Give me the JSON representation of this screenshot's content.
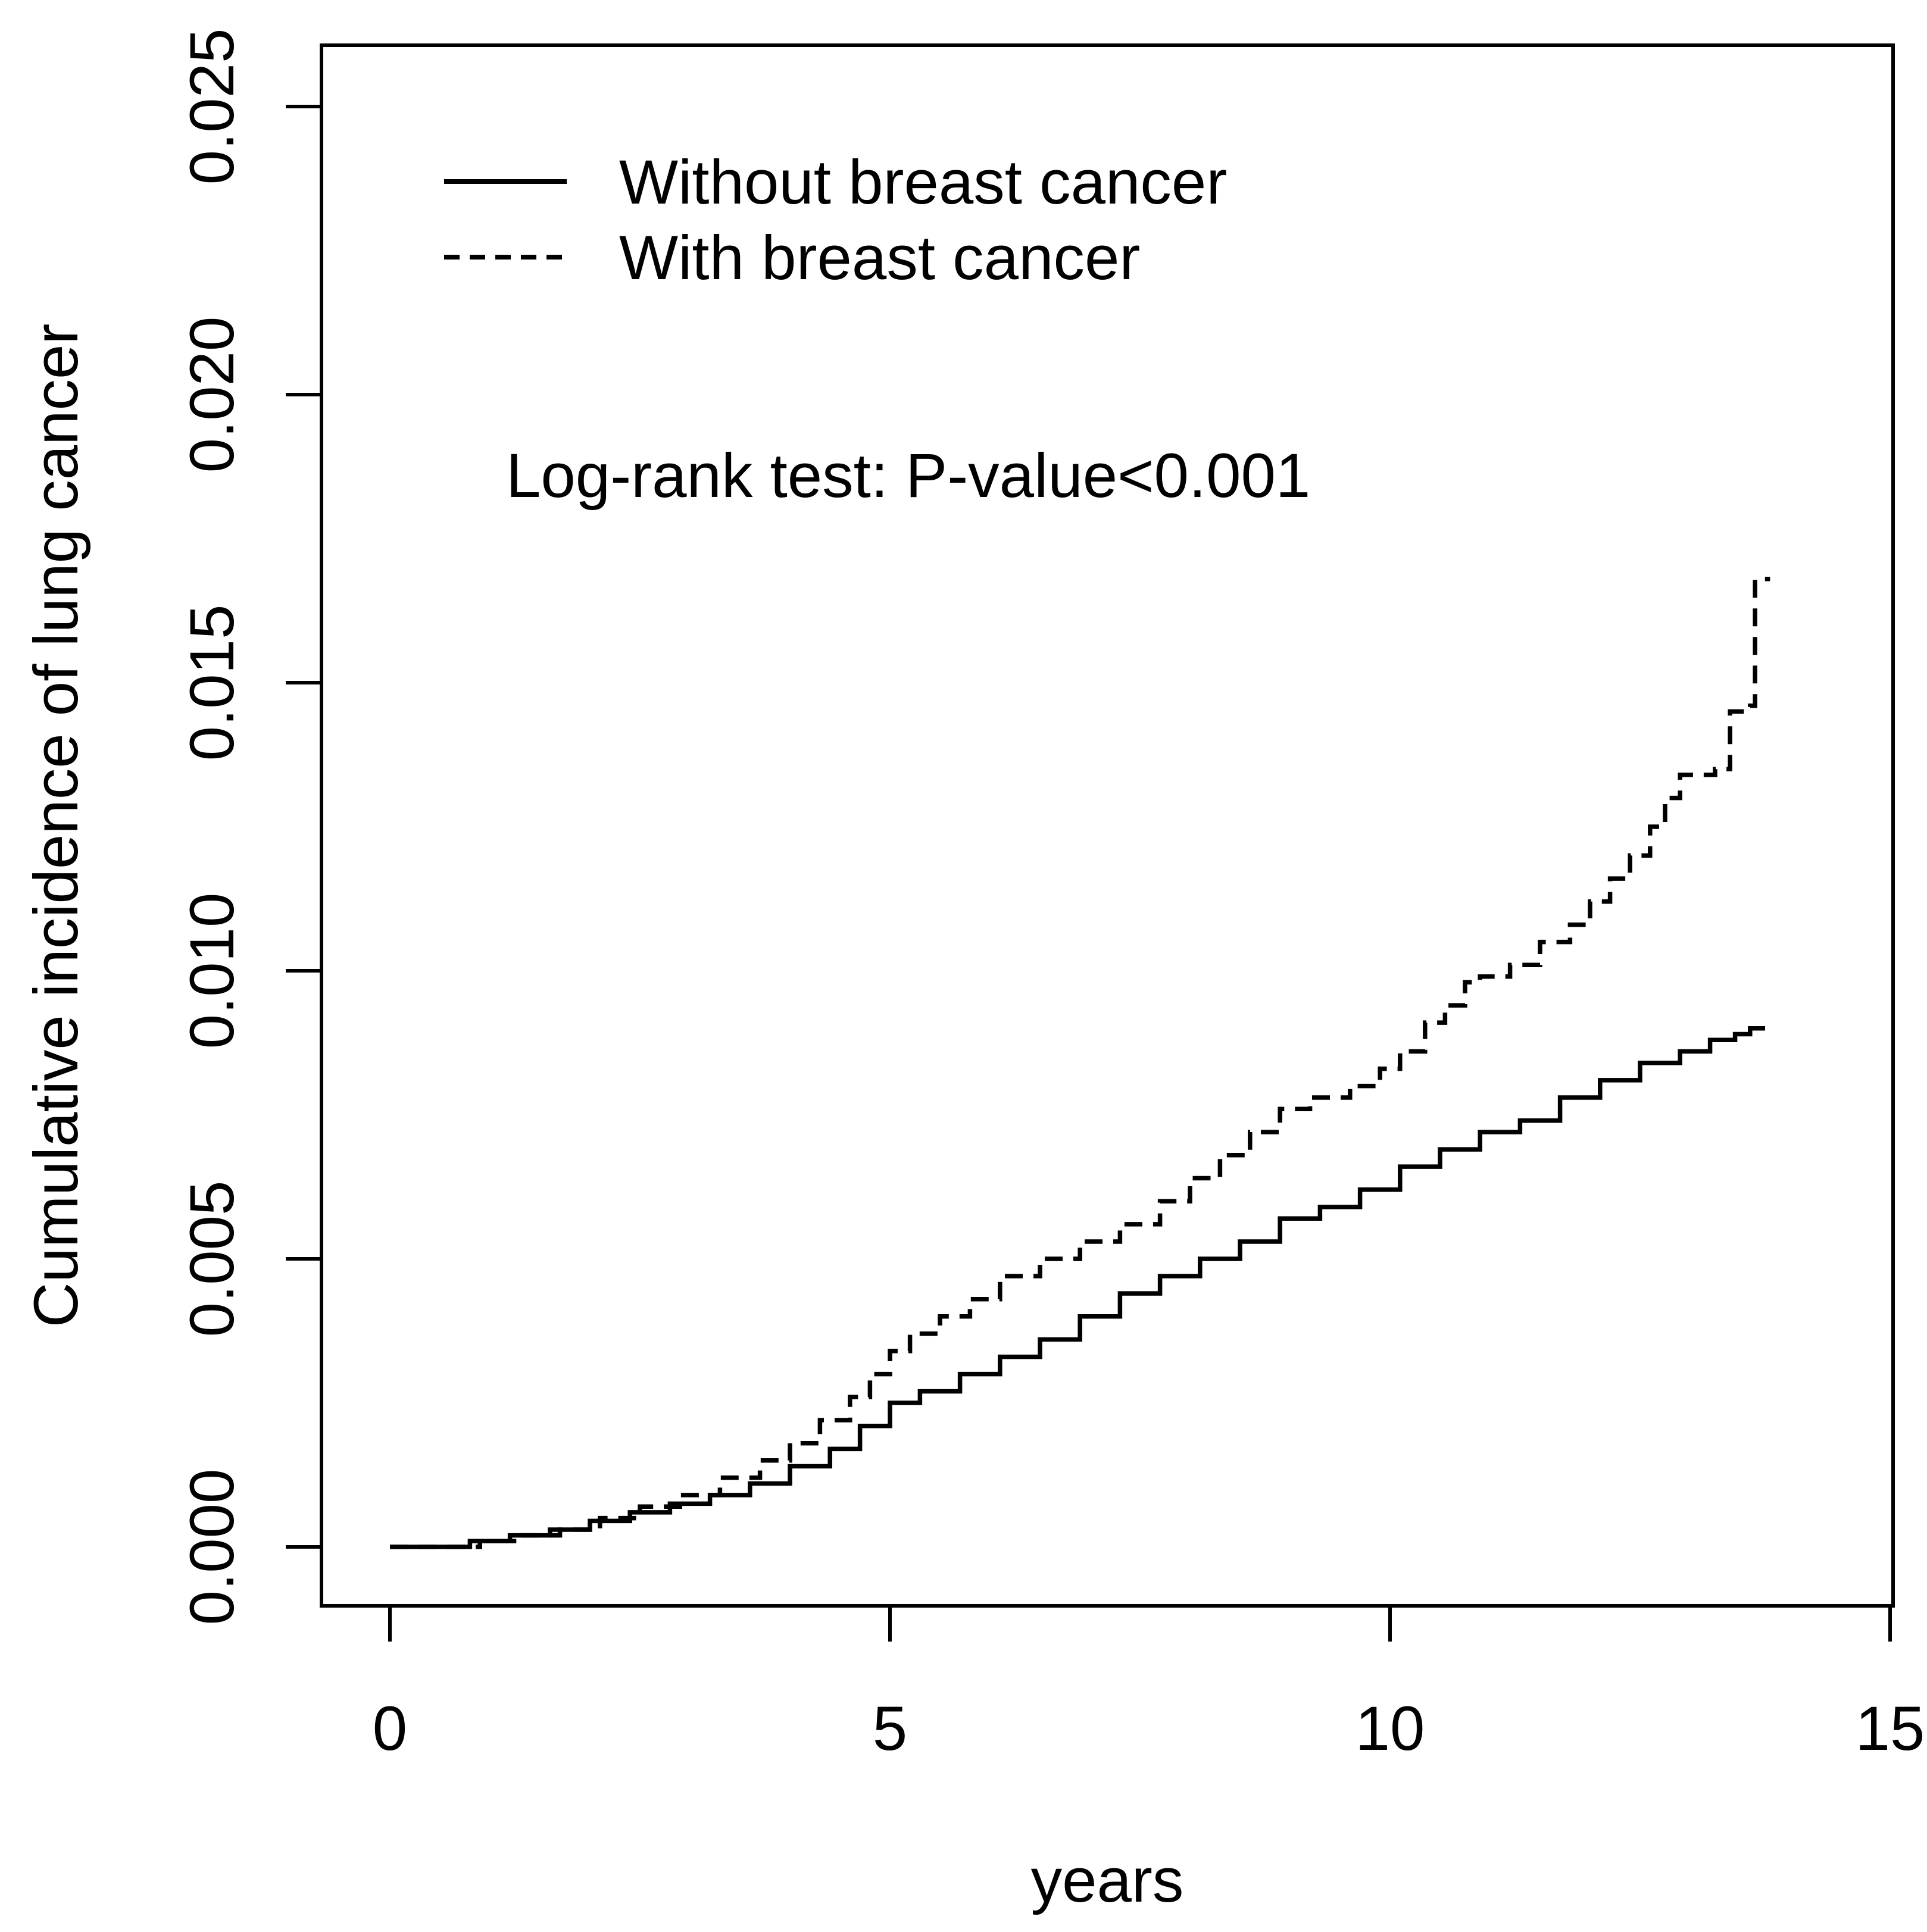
{
  "figure": {
    "background_color": "#ffffff",
    "foreground_color": "#000000"
  },
  "chart_data": {
    "type": "line",
    "subtype": "cumulative-incidence-step-curves",
    "title": "",
    "xlabel": "years",
    "ylabel": "Cumulative incidence of lung cancer",
    "xlim": [
      0,
      15
    ],
    "ylim": [
      0,
      0.025
    ],
    "grid": false,
    "legend_position": "top-left-inside",
    "interpolation": "step-after",
    "annotation": "Log-rank test: P-value<0.001",
    "x_ticks": {
      "values": [
        0,
        5,
        10,
        15
      ],
      "labels": [
        "0",
        "5",
        "10",
        "15"
      ]
    },
    "y_ticks": {
      "values": [
        0,
        0.005,
        0.01,
        0.015,
        0.02,
        0.025
      ],
      "labels": [
        "0.000",
        "0.005",
        "0.010",
        "0.015",
        "0.020",
        "0.025"
      ]
    },
    "legend": [
      {
        "label": "Without breast cancer",
        "line_style": "solid"
      },
      {
        "label": "With breast cancer",
        "line_style": "dashed"
      }
    ],
    "series": [
      {
        "name": "Without breast cancer",
        "line_style": "solid",
        "color": "#000000",
        "points": [
          [
            0,
            0
          ],
          [
            0.55,
            0
          ],
          [
            0.8,
            0.0001
          ],
          [
            1.2,
            0.0002
          ],
          [
            1.6,
            0.0003
          ],
          [
            2.0,
            0.00045
          ],
          [
            2.4,
            0.0006
          ],
          [
            2.8,
            0.00075
          ],
          [
            3.2,
            0.0009
          ],
          [
            3.6,
            0.0011
          ],
          [
            4.0,
            0.0014
          ],
          [
            4.4,
            0.0017
          ],
          [
            4.7,
            0.0021
          ],
          [
            5.0,
            0.0025
          ],
          [
            5.3,
            0.0027
          ],
          [
            5.7,
            0.003
          ],
          [
            6.1,
            0.0033
          ],
          [
            6.5,
            0.0036
          ],
          [
            6.9,
            0.004
          ],
          [
            7.3,
            0.0044
          ],
          [
            7.7,
            0.0047
          ],
          [
            8.1,
            0.005
          ],
          [
            8.5,
            0.0053
          ],
          [
            8.9,
            0.0057
          ],
          [
            9.3,
            0.0059
          ],
          [
            9.7,
            0.0062
          ],
          [
            10.1,
            0.0066
          ],
          [
            10.5,
            0.0069
          ],
          [
            10.9,
            0.0072
          ],
          [
            11.3,
            0.0074
          ],
          [
            11.7,
            0.0078
          ],
          [
            12.1,
            0.0081
          ],
          [
            12.5,
            0.0084
          ],
          [
            12.9,
            0.0086
          ],
          [
            13.2,
            0.0088
          ],
          [
            13.45,
            0.0089
          ],
          [
            13.6,
            0.009
          ],
          [
            13.75,
            0.009
          ]
        ]
      },
      {
        "name": "With breast cancer",
        "line_style": "dashed",
        "color": "#000000",
        "points": [
          [
            0,
            0
          ],
          [
            0.55,
            0
          ],
          [
            0.9,
            0.0001
          ],
          [
            1.3,
            0.0002
          ],
          [
            1.7,
            0.0003
          ],
          [
            2.1,
            0.0005
          ],
          [
            2.5,
            0.0007
          ],
          [
            2.9,
            0.0009
          ],
          [
            3.3,
            0.0012
          ],
          [
            3.7,
            0.0015
          ],
          [
            4.0,
            0.0018
          ],
          [
            4.3,
            0.0022
          ],
          [
            4.6,
            0.0026
          ],
          [
            4.8,
            0.003
          ],
          [
            5.0,
            0.0034
          ],
          [
            5.2,
            0.0037
          ],
          [
            5.5,
            0.004
          ],
          [
            5.8,
            0.0043
          ],
          [
            6.1,
            0.0047
          ],
          [
            6.5,
            0.005
          ],
          [
            6.9,
            0.0053
          ],
          [
            7.3,
            0.0056
          ],
          [
            7.7,
            0.006
          ],
          [
            8.0,
            0.0064
          ],
          [
            8.3,
            0.0068
          ],
          [
            8.6,
            0.0072
          ],
          [
            8.9,
            0.0076
          ],
          [
            9.2,
            0.0078
          ],
          [
            9.6,
            0.008
          ],
          [
            9.9,
            0.0083
          ],
          [
            10.1,
            0.0086
          ],
          [
            10.35,
            0.0091
          ],
          [
            10.55,
            0.0094
          ],
          [
            10.75,
            0.0098
          ],
          [
            10.9,
            0.0099
          ],
          [
            11.2,
            0.0101
          ],
          [
            11.5,
            0.0105
          ],
          [
            11.8,
            0.0108
          ],
          [
            12.0,
            0.0112
          ],
          [
            12.2,
            0.0116
          ],
          [
            12.4,
            0.012
          ],
          [
            12.6,
            0.0125
          ],
          [
            12.75,
            0.013
          ],
          [
            12.9,
            0.0134
          ],
          [
            13.25,
            0.0135
          ],
          [
            13.4,
            0.0145
          ],
          [
            13.6,
            0.0146
          ],
          [
            13.65,
            0.0168
          ],
          [
            13.8,
            0.0168
          ]
        ]
      }
    ]
  }
}
